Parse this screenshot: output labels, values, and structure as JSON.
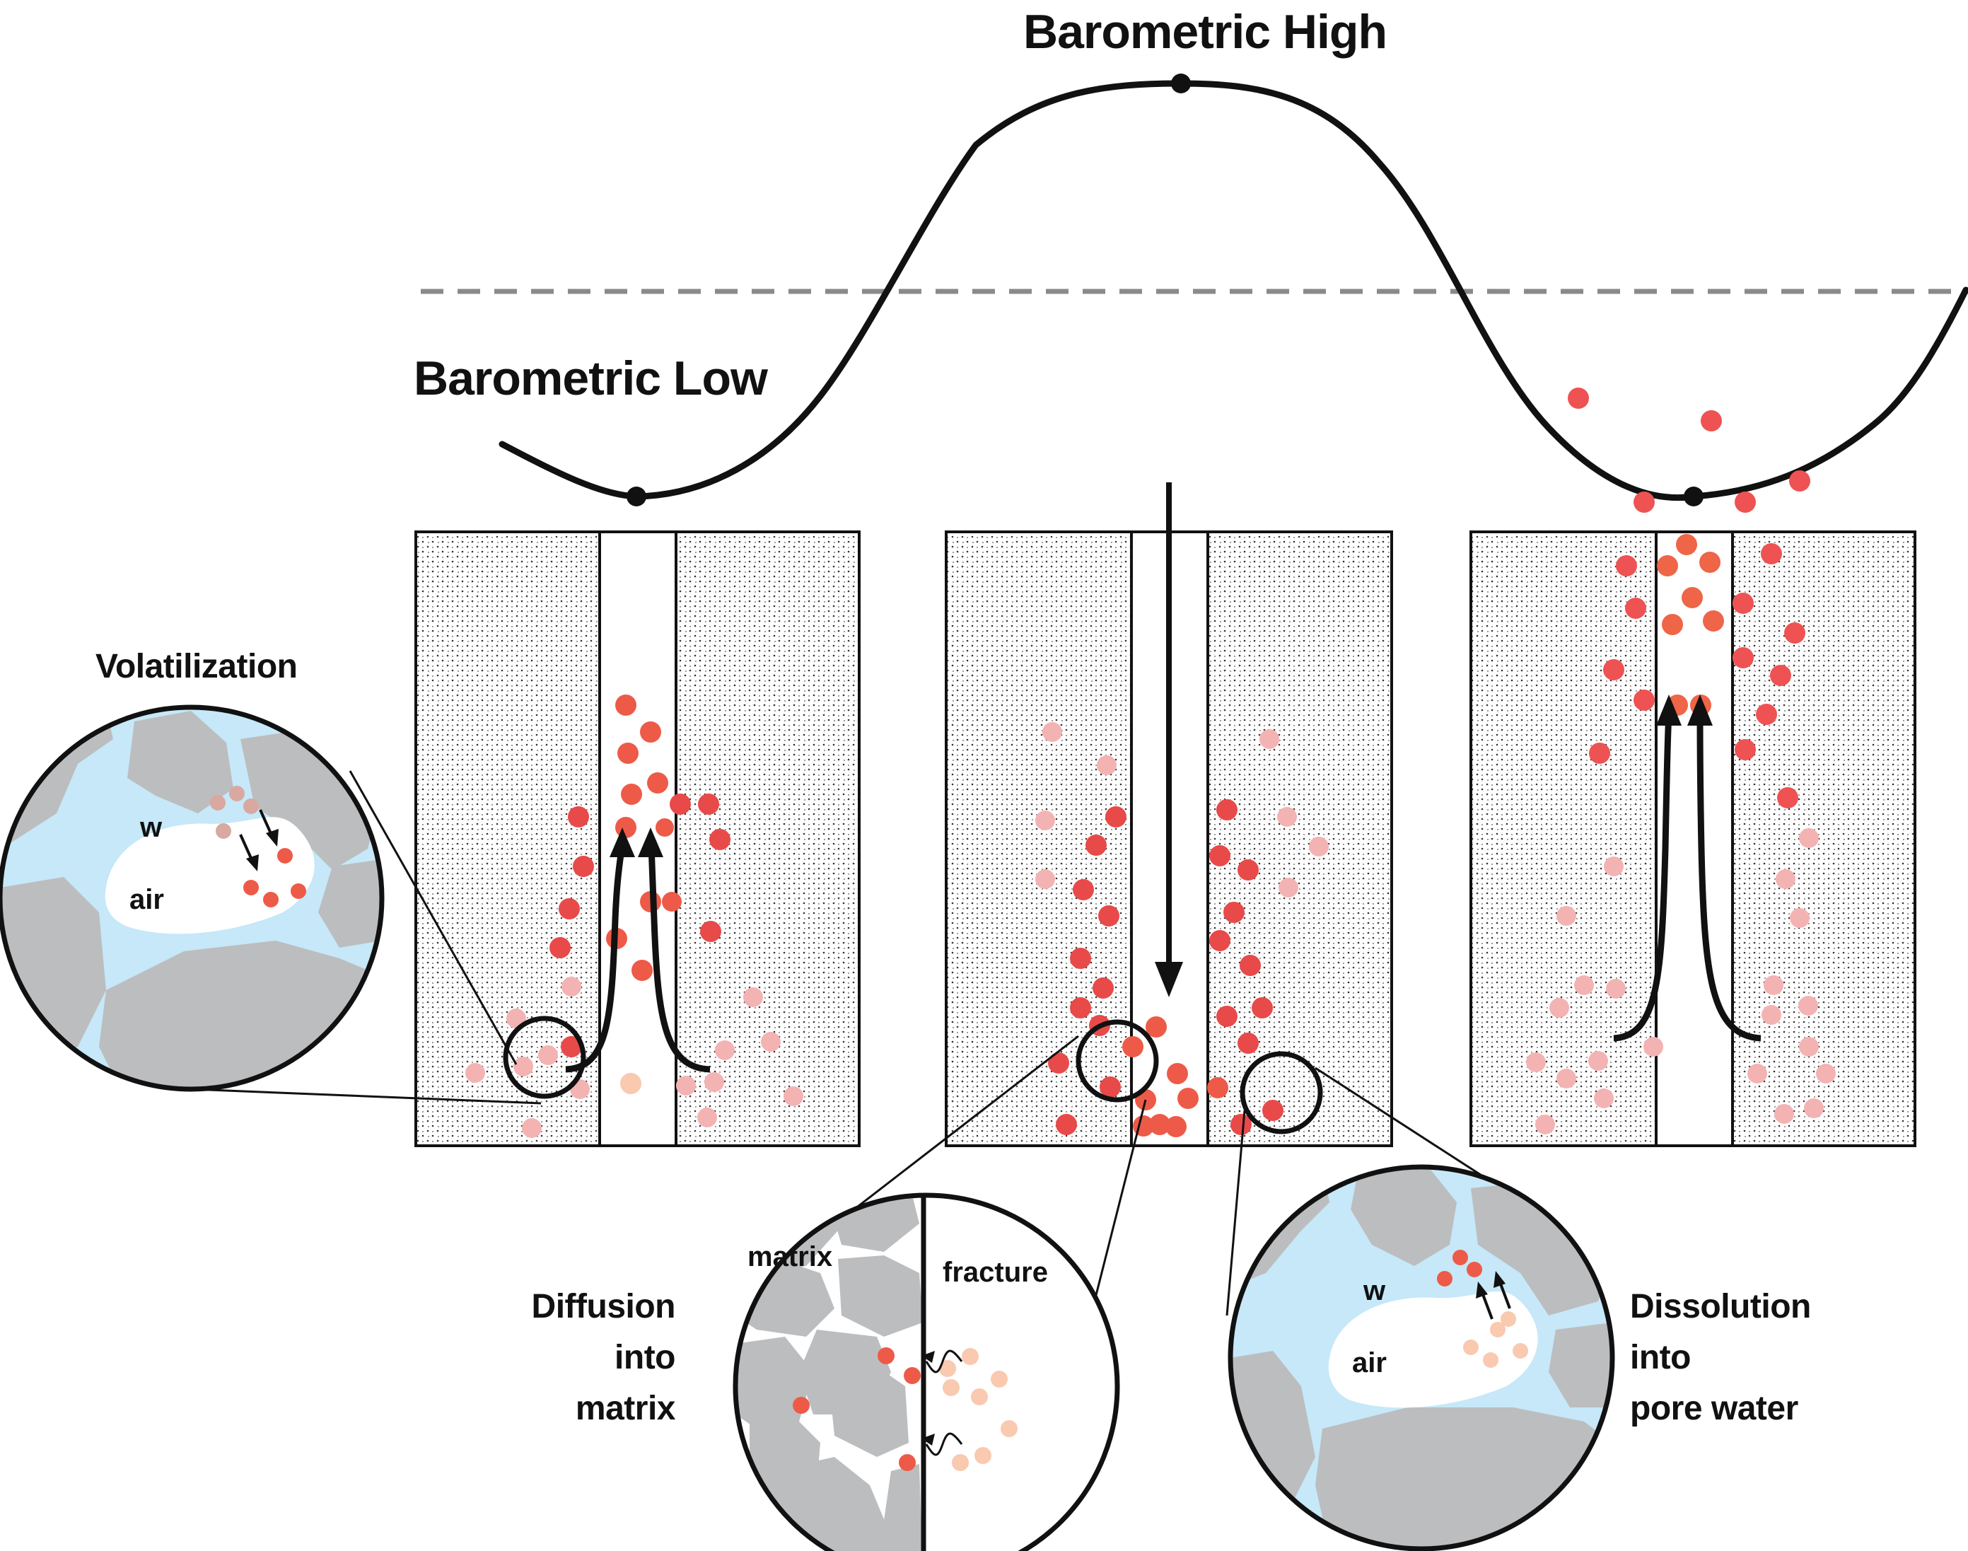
{
  "title_high": "Barometric High",
  "title_low": "Barometric Low",
  "volatilization": {
    "title": "Volatilization",
    "water_label": "w",
    "air_label": "air"
  },
  "diffusion": {
    "lines": [
      "Diffusion",
      "into",
      "matrix"
    ],
    "matrix_label": "matrix",
    "fracture_label": "fracture"
  },
  "dissolution": {
    "lines": [
      "Dissolution",
      "into",
      "pore water"
    ],
    "water_label": "w",
    "air_label": "air"
  },
  "colors": {
    "strong_particle": "#ee5a48",
    "light_particle": "#f8c3b6",
    "water": "#c6e8f8",
    "grain": "#bcbdbf",
    "dashed_line": "#8a8a8a",
    "outline": "#111111"
  }
}
